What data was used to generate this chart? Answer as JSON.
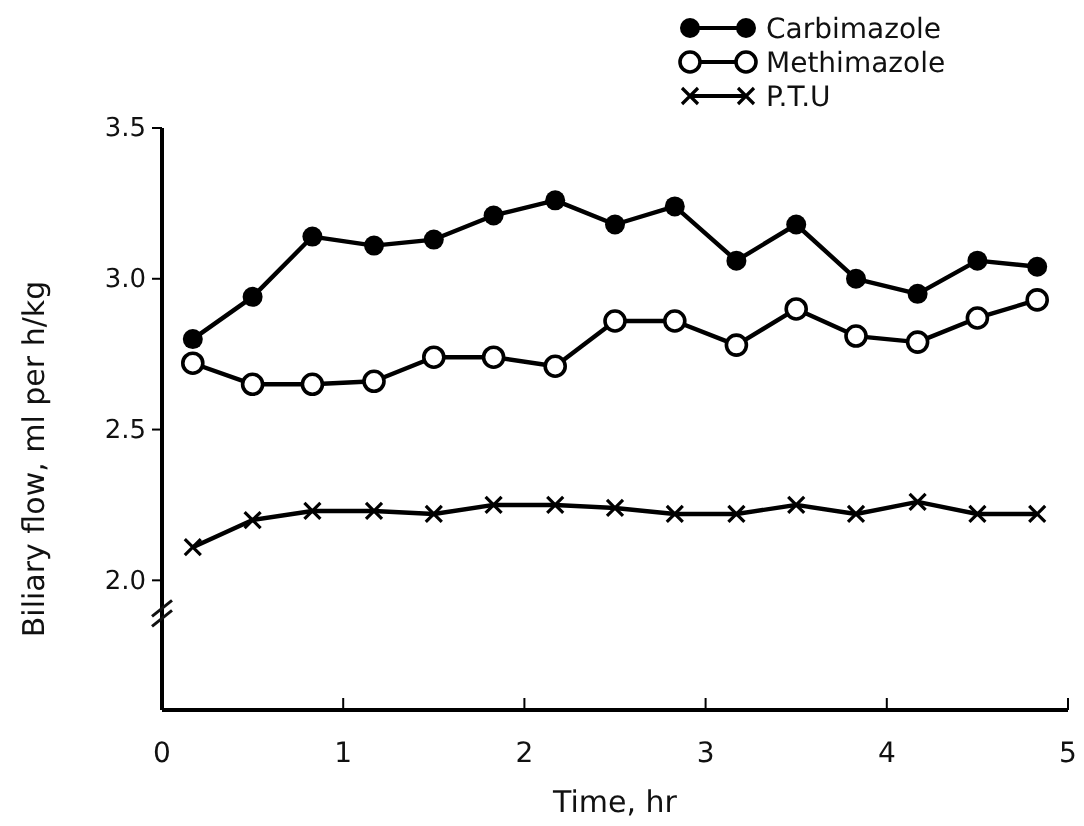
{
  "chart_data": {
    "type": "line",
    "xlabel": "Time,   hr",
    "ylabel": "Biliary flow,   ml per h/kg",
    "xlim": [
      0,
      5
    ],
    "xticks": [
      0,
      1,
      2,
      3,
      4,
      5
    ],
    "ylim": [
      1.57,
      3.5
    ],
    "yticks": [
      {
        "value": 2,
        "label": "2.0"
      },
      {
        "value": 2.5,
        "label": "2.5"
      },
      {
        "value": 3,
        "label": "3.0"
      },
      {
        "value": 3.5,
        "label": "3.5"
      }
    ],
    "x": [
      0.17,
      0.5,
      0.83,
      1.17,
      1.5,
      1.83,
      2.17,
      2.5,
      2.83,
      3.17,
      3.5,
      3.83,
      4.17,
      4.5,
      4.83
    ],
    "legend": "top right",
    "grid": false,
    "line_style": "solid",
    "series": [
      {
        "name": "Carbimazole",
        "color": "#000000",
        "marker": "circle",
        "values": [
          2.8,
          2.94,
          3.14,
          3.11,
          3.13,
          3.21,
          3.26,
          3.18,
          3.24,
          3.06,
          3.18,
          3.0,
          2.95,
          3.06,
          3.04
        ]
      },
      {
        "name": "Methimazole",
        "color": "#000000",
        "marker": "circle-open",
        "values": [
          2.72,
          2.65,
          2.65,
          2.66,
          2.74,
          2.74,
          2.71,
          2.86,
          2.86,
          2.78,
          2.9,
          2.81,
          2.79,
          2.87,
          2.93
        ]
      },
      {
        "name": "P.T.U",
        "color": "#000000",
        "marker": "cross",
        "values": [
          2.11,
          2.2,
          2.23,
          2.23,
          2.22,
          2.25,
          2.25,
          2.24,
          2.22,
          2.22,
          2.25,
          2.22,
          2.26,
          2.22,
          2.22
        ]
      }
    ]
  }
}
